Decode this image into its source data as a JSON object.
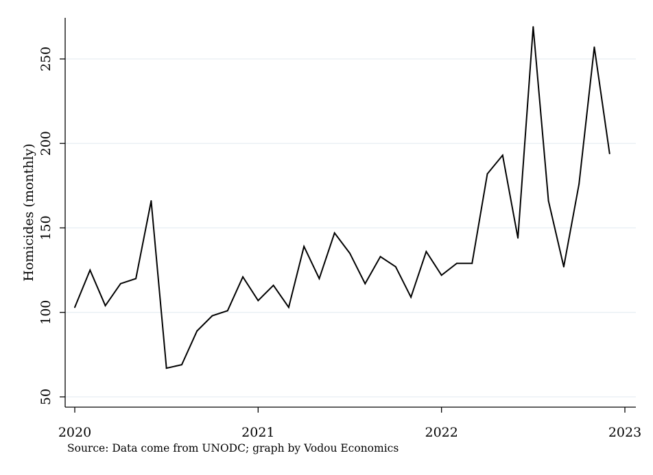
{
  "chart_data": {
    "type": "line",
    "ylabel": "Homicides (monthly)",
    "note": "Source: Data come from UNODC; graph by Vodou Economics",
    "xlim": [
      2020,
      2023
    ],
    "ylim": [
      50,
      275
    ],
    "x_ticks": [
      2020,
      2021,
      2022,
      2023
    ],
    "x_tick_labels": [
      "2020",
      "2021",
      "2022",
      "2023"
    ],
    "y_ticks": [
      50,
      100,
      150,
      200,
      250
    ],
    "y_tick_labels": [
      "50",
      "100",
      "150",
      "200",
      "250"
    ],
    "grid": "horizontal",
    "line_color": "#000000",
    "grid_color": "#e6eef2",
    "series": [
      {
        "x": [
          "2020-01",
          "2020-02",
          "2020-03",
          "2020-04",
          "2020-05",
          "2020-06",
          "2020-07",
          "2020-08",
          "2020-09",
          "2020-10",
          "2020-11",
          "2020-12",
          "2021-01",
          "2021-02",
          "2021-03",
          "2021-04",
          "2021-05",
          "2021-06",
          "2021-07",
          "2021-08",
          "2021-09",
          "2021-10",
          "2021-11",
          "2021-12",
          "2022-01",
          "2022-02",
          "2022-03",
          "2022-04",
          "2022-05",
          "2022-06",
          "2022-07",
          "2022-08",
          "2022-09",
          "2022-10",
          "2022-11",
          "2022-12"
        ],
        "values": [
          103,
          125,
          104,
          117,
          120,
          166,
          67,
          69,
          89,
          98,
          101,
          121,
          107,
          116,
          103,
          139,
          120,
          147,
          135,
          117,
          133,
          127,
          109,
          136,
          122,
          129,
          129,
          182,
          193,
          144,
          269,
          166,
          127,
          176,
          257,
          194
        ]
      }
    ]
  }
}
